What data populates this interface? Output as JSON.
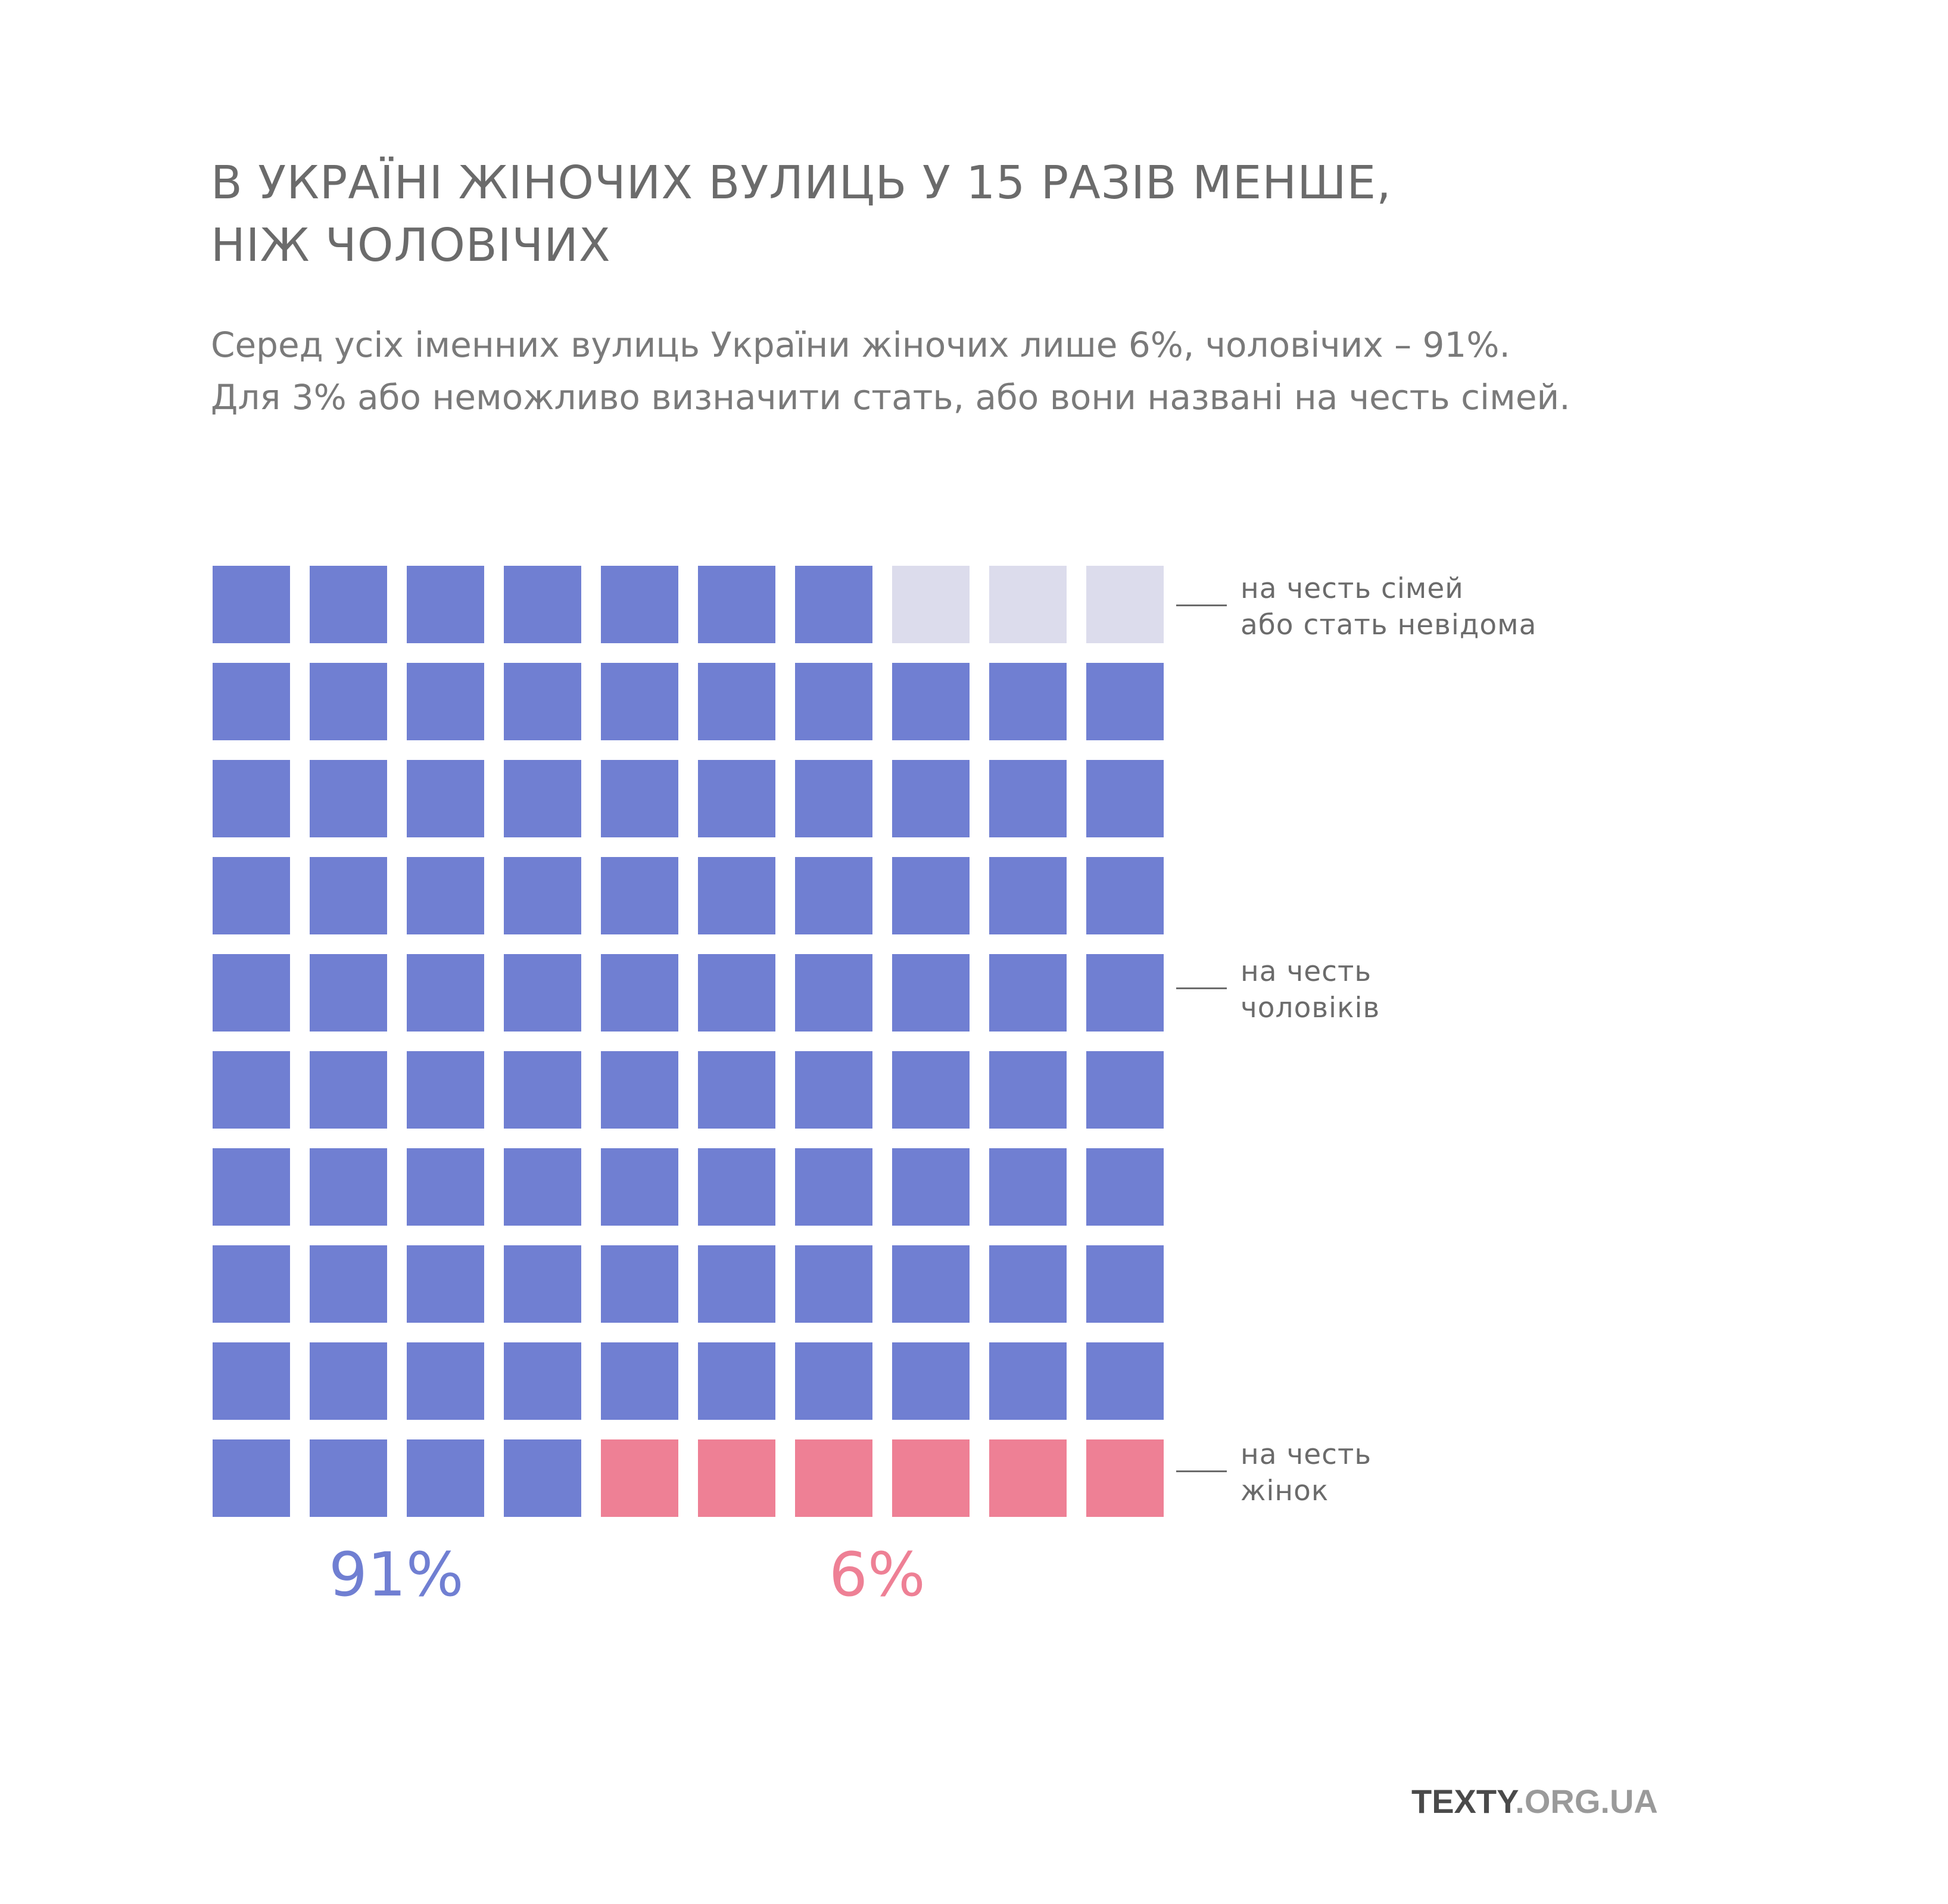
{
  "title_lines": [
    "В УКРАЇНІ ЖІНОЧИХ ВУЛИЦЬ У 15 РАЗІВ МЕНШЕ,",
    "НІЖ ЧОЛОВІЧИХ"
  ],
  "subtitle_lines": [
    "Серед усіх іменних вулиць України жіночих лише 6%, чоловічих – 91%.",
    "Для 3% або неможливо визначити стать, або вони названі на честь сімей."
  ],
  "colors": {
    "men": "#707fd2",
    "women": "#ee8095",
    "unknown": "#dcdcec",
    "text": "#6b6b6b"
  },
  "chart_data": {
    "type": "waffle",
    "grid": {
      "rows": 10,
      "cols": 10,
      "unit_percent": 1
    },
    "fill_order": "first row: men then unknown; middle rows: men; last row: men then women",
    "categories": [
      {
        "key": "unknown",
        "value": 3,
        "label_lines": [
          "на честь сімей",
          "або стать невідома"
        ]
      },
      {
        "key": "men",
        "value": 91,
        "label_lines": [
          "на честь",
          "чоловіків"
        ]
      },
      {
        "key": "women",
        "value": 6,
        "label_lines": [
          "на честь",
          "жінок"
        ]
      }
    ],
    "big_labels": {
      "men": "91%",
      "women": "6%"
    }
  },
  "brand": {
    "part1": "TEXTY",
    "part2": ".ORG.UA"
  }
}
